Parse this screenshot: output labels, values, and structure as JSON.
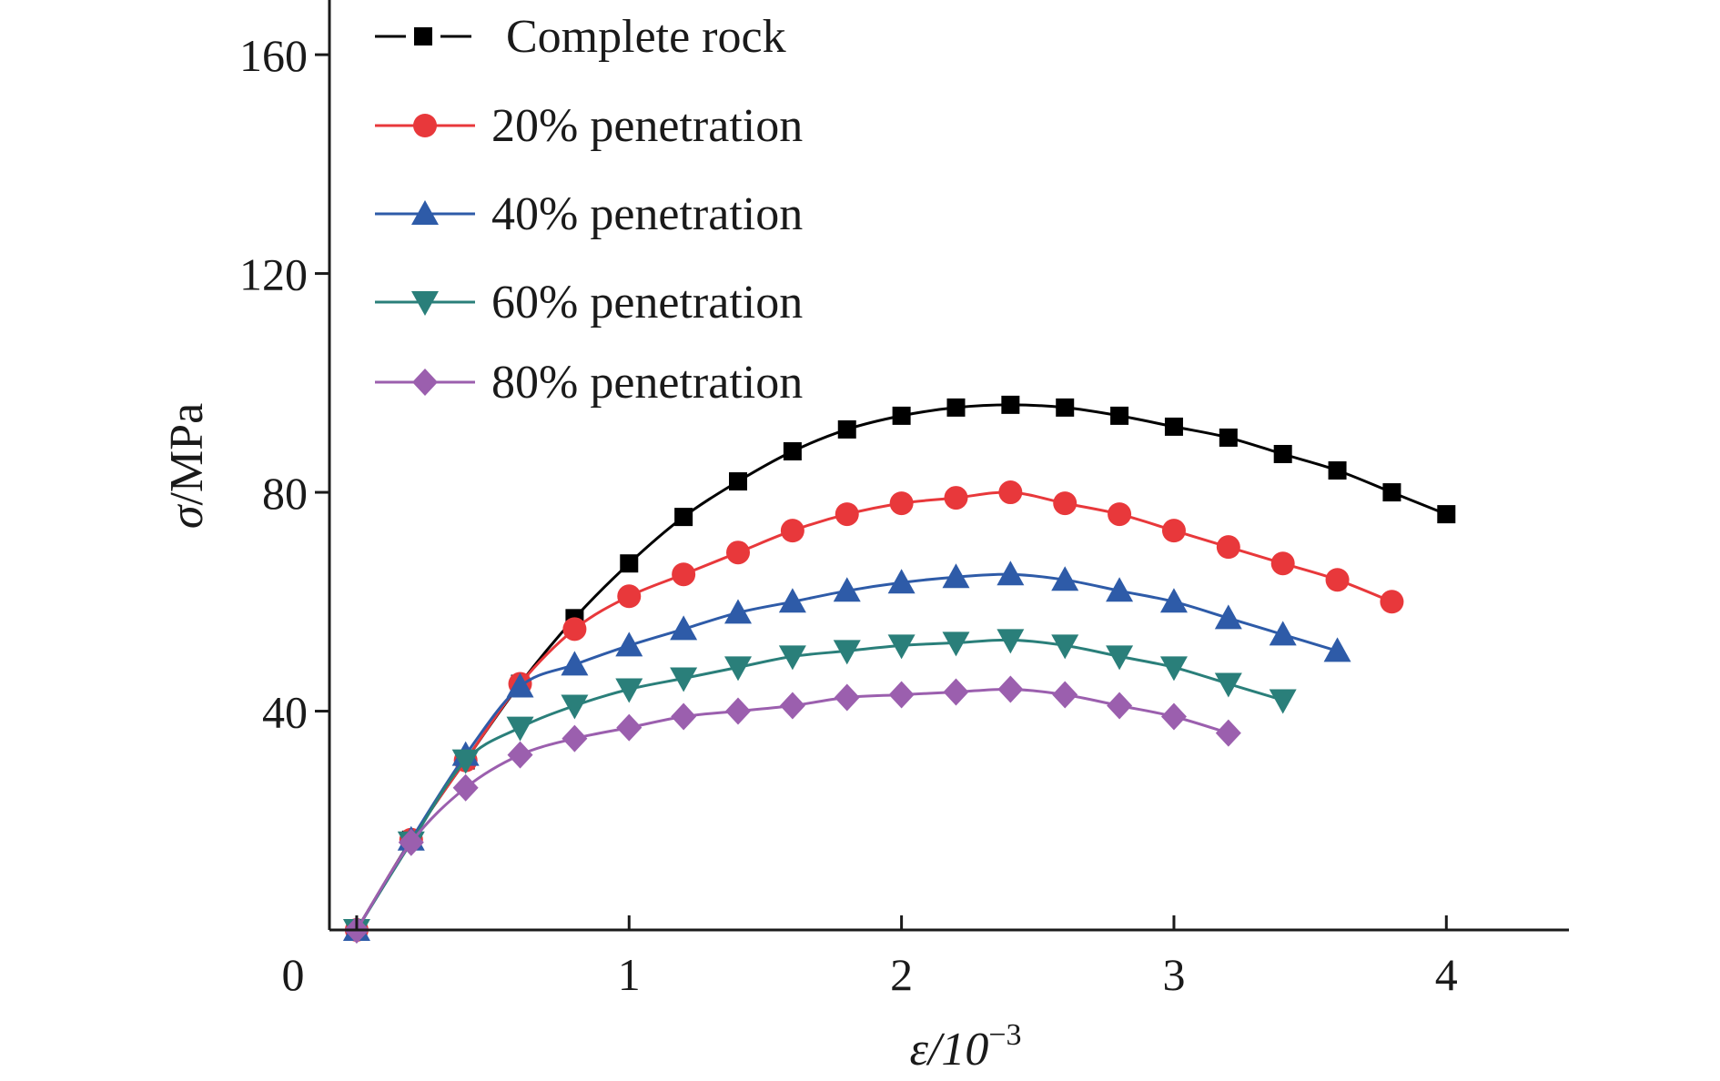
{
  "chart_data": {
    "type": "line",
    "xlabel": "ε/10⁻³",
    "xlabel_main": "ε/10",
    "xlabel_exp": "−3",
    "ylabel": "σ/MPa",
    "ylabel_sym": "σ",
    "ylabel_unit": "/MPa",
    "xlim": [
      -0.1,
      4.45
    ],
    "ylim": [
      0,
      170
    ],
    "xticks": [
      0,
      1,
      2,
      3,
      4
    ],
    "yticks": [
      40,
      80,
      120,
      160
    ],
    "x_tick_labels": [
      "0",
      "1",
      "2",
      "3",
      "4"
    ],
    "y_tick_labels": [
      "40",
      "80",
      "120",
      "160"
    ],
    "grid": false,
    "legend_position": "top-left",
    "series": [
      {
        "name": "Complete rock",
        "color": "#000000",
        "marker": "square",
        "x": [
          0,
          0.2,
          0.4,
          0.6,
          0.8,
          1.0,
          1.2,
          1.4,
          1.6,
          1.8,
          2.0,
          2.2,
          2.4,
          2.6,
          2.8,
          3.0,
          3.2,
          3.4,
          3.6,
          3.8,
          4.0
        ],
        "y": [
          0,
          16.5,
          31,
          45,
          57,
          67,
          75.5,
          82,
          87.5,
          91.5,
          94,
          95.5,
          96,
          95.5,
          94,
          92,
          90,
          87,
          84,
          80,
          76
        ]
      },
      {
        "name": "20% penetration",
        "color": "#e8383b",
        "marker": "circle",
        "x": [
          0,
          0.2,
          0.4,
          0.6,
          0.8,
          1.0,
          1.2,
          1.4,
          1.6,
          1.8,
          2.0,
          2.2,
          2.4,
          2.6,
          2.8,
          3.0,
          3.2,
          3.4,
          3.6,
          3.8
        ],
        "y": [
          0,
          16.5,
          31,
          45,
          55,
          61,
          65,
          69,
          73,
          76,
          78,
          79,
          80,
          78,
          76,
          73,
          70,
          67,
          64,
          60
        ]
      },
      {
        "name": "40% penetration",
        "color": "#2e5ba8",
        "marker": "triangle-up",
        "x": [
          0,
          0.2,
          0.4,
          0.6,
          0.8,
          1.0,
          1.2,
          1.4,
          1.6,
          1.8,
          2.0,
          2.2,
          2.4,
          2.6,
          2.8,
          3.0,
          3.2,
          3.4,
          3.6
        ],
        "y": [
          0,
          16.5,
          32,
          44.5,
          48.5,
          52,
          55,
          58,
          60,
          62,
          63.5,
          64.5,
          65,
          64,
          62,
          60,
          57,
          54,
          51
        ]
      },
      {
        "name": "60% penetration",
        "color": "#2a7f7a",
        "marker": "triangle-down",
        "x": [
          0,
          0.2,
          0.4,
          0.6,
          0.8,
          1.0,
          1.2,
          1.4,
          1.6,
          1.8,
          2.0,
          2.2,
          2.4,
          2.6,
          2.8,
          3.0,
          3.2,
          3.4
        ],
        "y": [
          0,
          16,
          31,
          37,
          41,
          44,
          46,
          48,
          50,
          51,
          52,
          52.5,
          53,
          52,
          50,
          48,
          45,
          42
        ]
      },
      {
        "name": "80% penetration",
        "color": "#9b5fae",
        "marker": "diamond",
        "x": [
          0,
          0.2,
          0.4,
          0.6,
          0.8,
          1.0,
          1.2,
          1.4,
          1.6,
          1.8,
          2.0,
          2.2,
          2.4,
          2.6,
          2.8,
          3.0,
          3.2
        ],
        "y": [
          0,
          16,
          26,
          32,
          35,
          37,
          39,
          40,
          41,
          42.5,
          43,
          43.5,
          44,
          43,
          41,
          39,
          36
        ]
      }
    ]
  }
}
